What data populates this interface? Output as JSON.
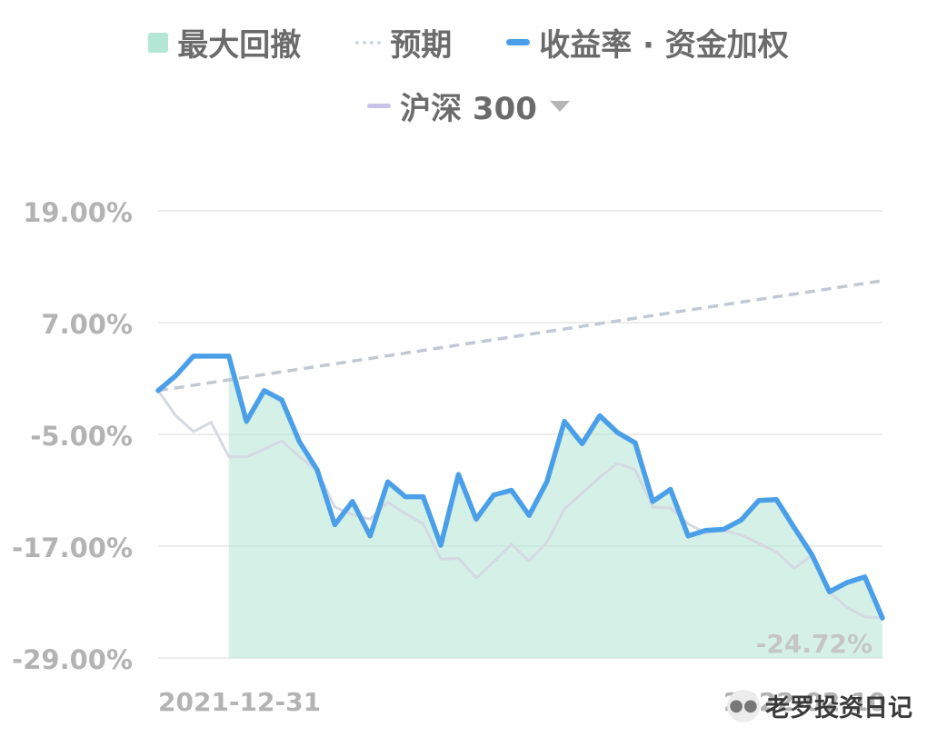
{
  "legend": {
    "drawdown": {
      "label": "最大回撤",
      "color": "#b3e6d4"
    },
    "expected": {
      "label": "预期",
      "color": "#cfd6df"
    },
    "return": {
      "label": "收益率 · 资金加权",
      "color": "#4a9fe8"
    },
    "index": {
      "label": "沪深 300",
      "color": "#c9c3ea"
    }
  },
  "watermark": "老罗投资日记",
  "chart_data": {
    "type": "line",
    "ylim": [
      -29,
      19
    ],
    "yticks": [
      "19.00%",
      "7.00%",
      "-5.00%",
      "-17.00%",
      "-29.00%"
    ],
    "x_start_label": "2021-12-31",
    "x_end_label": "2022-02-10",
    "final_label": "-24.72%",
    "drawdown_start_index": 4,
    "series": [
      {
        "name": "收益率 · 资金加权",
        "values": [
          -0.3,
          1.3,
          3.4,
          3.4,
          3.4,
          -3.6,
          -0.3,
          -1.3,
          -5.8,
          -8.8,
          -14.7,
          -12.2,
          -15.9,
          -10.1,
          -11.7,
          -11.7,
          -16.9,
          -9.3,
          -14.1,
          -11.5,
          -11.0,
          -13.7,
          -10.1,
          -3.6,
          -6.0,
          -3.0,
          -4.8,
          -5.9,
          -12.2,
          -10.9,
          -15.9,
          -15.3,
          -15.2,
          -14.2,
          -12.1,
          -12.0,
          -15.0,
          -17.9,
          -21.9,
          -20.9,
          -20.3,
          -24.72
        ]
      },
      {
        "name": "沪深 300",
        "values": [
          -0.3,
          -3.0,
          -4.7,
          -3.7,
          -7.4,
          -7.4,
          -6.6,
          -5.7,
          -7.4,
          -8.9,
          -12.8,
          -13.6,
          -14.1,
          -12.3,
          -13.5,
          -14.6,
          -18.4,
          -18.3,
          -20.4,
          -18.7,
          -16.8,
          -18.6,
          -16.6,
          -13.0,
          -11.3,
          -9.6,
          -8.1,
          -8.8,
          -12.8,
          -12.9,
          -14.6,
          -15.6,
          -15.3,
          -15.8,
          -16.7,
          -17.6,
          -19.4,
          -18.0,
          -21.9,
          -23.6,
          -24.6,
          -24.7
        ]
      }
    ],
    "expected_line": {
      "start": -0.3,
      "end": 11.5
    }
  }
}
